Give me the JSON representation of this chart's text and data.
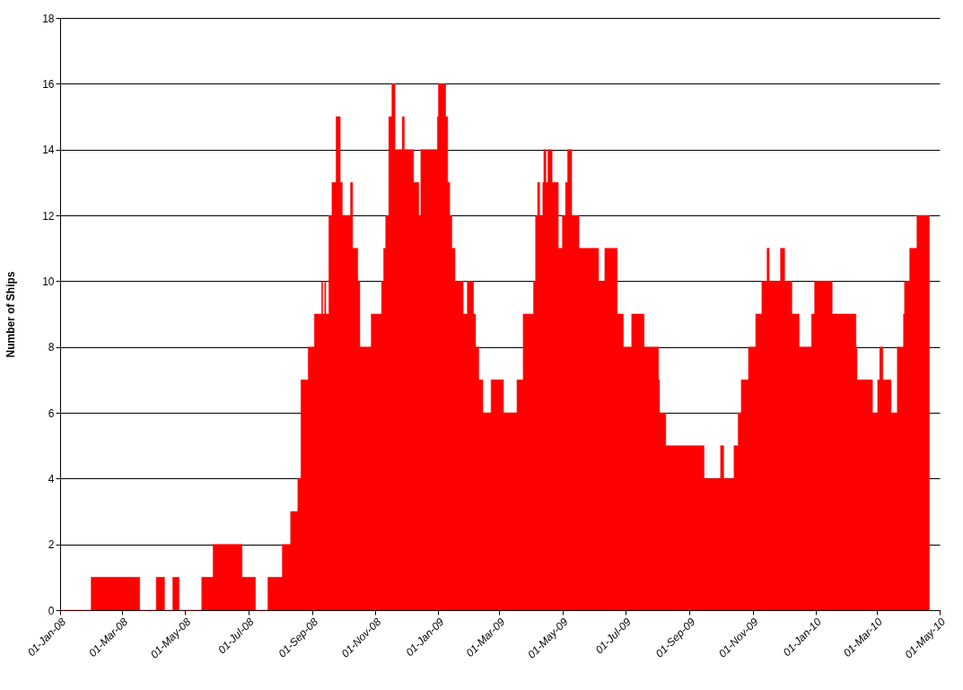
{
  "chart_data": {
    "type": "area",
    "ylabel": "Number of Ships",
    "xlim": [
      "2008-01-01",
      "2010-05-01"
    ],
    "xticks": [
      {
        "value": "2008-01-01",
        "label": "01-Jan-08"
      },
      {
        "value": "2008-03-01",
        "label": "01-Mar-08"
      },
      {
        "value": "2008-05-01",
        "label": "01-May-08"
      },
      {
        "value": "2008-07-01",
        "label": "01-Jul-08"
      },
      {
        "value": "2008-09-01",
        "label": "01-Sep-08"
      },
      {
        "value": "2008-11-01",
        "label": "01-Nov-08"
      },
      {
        "value": "2009-01-01",
        "label": "01-Jan-09"
      },
      {
        "value": "2009-03-01",
        "label": "01-Mar-09"
      },
      {
        "value": "2009-05-01",
        "label": "01-May-09"
      },
      {
        "value": "2009-07-01",
        "label": "01-Jul-09"
      },
      {
        "value": "2009-09-01",
        "label": "01-Sep-09"
      },
      {
        "value": "2009-11-01",
        "label": "01-Nov-09"
      },
      {
        "value": "2010-01-01",
        "label": "01-Jan-10"
      },
      {
        "value": "2010-03-01",
        "label": "01-Mar-10"
      },
      {
        "value": "2010-05-01",
        "label": "01-May-10"
      }
    ],
    "ylim": [
      0,
      18
    ],
    "yticks": [
      0,
      2,
      4,
      6,
      8,
      10,
      12,
      14,
      16,
      18
    ],
    "grid": "y",
    "legend": false,
    "series": [
      {
        "color": "#ff0000",
        "x": [
          "2008-01-01",
          "2008-01-31",
          "2008-03-18",
          "2008-04-03",
          "2008-04-11",
          "2008-04-19",
          "2008-04-25",
          "2008-05-17",
          "2008-05-28",
          "2008-06-25",
          "2008-07-08",
          "2008-07-20",
          "2008-08-03",
          "2008-08-11",
          "2008-08-18",
          "2008-08-21",
          "2008-08-28",
          "2008-09-03",
          "2008-09-10",
          "2008-09-11",
          "2008-09-13",
          "2008-09-14",
          "2008-09-17",
          "2008-09-20",
          "2008-09-24",
          "2008-09-28",
          "2008-09-30",
          "2008-10-08",
          "2008-10-10",
          "2008-10-15",
          "2008-10-17",
          "2008-10-28",
          "2008-11-07",
          "2008-11-09",
          "2008-11-11",
          "2008-11-14",
          "2008-11-17",
          "2008-11-20",
          "2008-11-27",
          "2008-11-29",
          "2008-12-08",
          "2008-12-13",
          "2008-12-15",
          "2008-12-31",
          "2009-01-01",
          "2009-01-08",
          "2009-01-10",
          "2009-01-12",
          "2009-01-14",
          "2009-01-17",
          "2009-01-25",
          "2009-01-29",
          "2009-02-04",
          "2009-02-06",
          "2009-02-09",
          "2009-02-13",
          "2009-02-21",
          "2009-03-05",
          "2009-03-18",
          "2009-03-24",
          "2009-04-03",
          "2009-04-05",
          "2009-04-07",
          "2009-04-09",
          "2009-04-12",
          "2009-04-13",
          "2009-04-15",
          "2009-04-17",
          "2009-04-21",
          "2009-04-27",
          "2009-05-01",
          "2009-05-04",
          "2009-05-06",
          "2009-05-10",
          "2009-05-17",
          "2009-06-05",
          "2009-06-11",
          "2009-06-23",
          "2009-06-29",
          "2009-07-07",
          "2009-07-19",
          "2009-08-02",
          "2009-08-03",
          "2009-08-09",
          "2009-09-15",
          "2009-10-01",
          "2009-10-04",
          "2009-10-14",
          "2009-10-18",
          "2009-10-21",
          "2009-10-28",
          "2009-11-04",
          "2009-11-10",
          "2009-11-15",
          "2009-11-17",
          "2009-11-28",
          "2009-12-02",
          "2009-12-09",
          "2009-12-16",
          "2009-12-28",
          "2009-12-31",
          "2010-01-17",
          "2010-02-09",
          "2010-02-10",
          "2010-02-25",
          "2010-03-02",
          "2010-03-04",
          "2010-03-07",
          "2010-03-15",
          "2010-03-21",
          "2010-03-27",
          "2010-03-28",
          "2010-04-02",
          "2010-04-09",
          "2010-04-21"
        ],
        "values": [
          0,
          1,
          0,
          1,
          0,
          1,
          0,
          1,
          2,
          1,
          0,
          1,
          2,
          3,
          4,
          7,
          8,
          9,
          10,
          9,
          10,
          9,
          12,
          13,
          15,
          13,
          12,
          13,
          11,
          10,
          8,
          9,
          10,
          11,
          12,
          15,
          16,
          14,
          15,
          14,
          13,
          12,
          14,
          15,
          16,
          15,
          13,
          12,
          11,
          10,
          9,
          10,
          9,
          8,
          7,
          6,
          7,
          6,
          7,
          9,
          10,
          12,
          13,
          12,
          13,
          14,
          13,
          14,
          13,
          11,
          12,
          13,
          14,
          12,
          11,
          10,
          11,
          9,
          8,
          9,
          8,
          7,
          6,
          5,
          4,
          5,
          4,
          5,
          6,
          7,
          8,
          9,
          10,
          11,
          10,
          11,
          10,
          9,
          8,
          9,
          10,
          9,
          8,
          7,
          6,
          7,
          8,
          7,
          6,
          8,
          9,
          10,
          11,
          12,
          0
        ]
      }
    ]
  }
}
